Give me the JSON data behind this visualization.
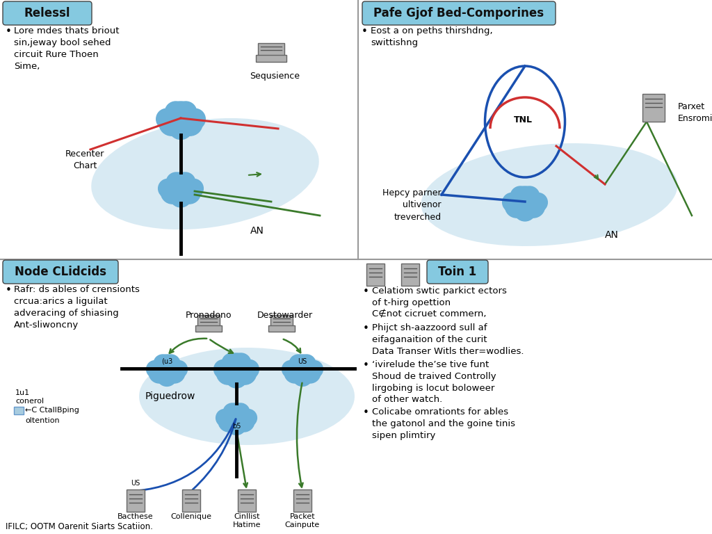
{
  "background_color": "#ffffff",
  "panel_tl": {
    "title": "Relessl",
    "title_bg": "#85c9e0",
    "bullet1": "Lore mdes thats briout\nsin,jeway bool sehed\ncircuit Rure Thoen\nSime,",
    "label_recenter": "Recenter\nChart",
    "label_seq": "Sequsience",
    "label_an": "AN",
    "ellipse_color": "#cce4f0",
    "line_red": "#d03030",
    "line_green": "#3a7a2a",
    "cloud_color": "#6ab0d8"
  },
  "panel_tr": {
    "title": "Pafe Gjof Bed-Comporines",
    "title_bg": "#85c9e0",
    "bullet1": "Eost a on peths thirshdng,\nswittishng",
    "label_tnl": "TNL",
    "label_parket": "Parxet\nEnsroming",
    "label_hepcy": "Hepcy parner\nultivenor\ntreverched",
    "label_an": "AN",
    "ellipse_color": "#cce4f0",
    "line_red": "#d03030",
    "line_blue": "#1a50b0",
    "line_green": "#3a7a2a",
    "cloud_color": "#6ab0d8"
  },
  "panel_bl": {
    "title": "Node CLidcids",
    "title_bg": "#85c9e0",
    "bullet1": "Rafr: ds ables of crensionts\ncrcua:arics a liguilat\nadveracing of shiasing\nAnt-sliwoncny",
    "label_legend_line1": "1u1",
    "label_legend_line2": "conerol",
    "label_legend_line3": "←C CtallBping",
    "label_legend_line4": "oltention",
    "label_pigu": "Piguedrow",
    "label_pronadono": "Pronadono",
    "label_destowarder": "Destowarder",
    "label_us_top": "US",
    "label_u3": "(u3",
    "label_us2": "US",
    "label_b5": "b5",
    "labels_bottom": [
      "Bacthese",
      "Collenique",
      "Cinllist\nHatime",
      "Packet\nCainpute"
    ],
    "ellipse_color": "#cce4f0",
    "line_blue": "#1a50b0",
    "line_green": "#3a7a2a",
    "cloud_color": "#6ab0d8"
  },
  "panel_br": {
    "title": "Toin 1",
    "title_bg": "#85c9e0",
    "bullets": [
      "Celatiom swtic parkict ectors\nof t-hirg opettion\nC∉not cicruet commern,",
      "Phijct sh-aazzoord sull af\neifaganaition of the curit\nData Transer Witls ther=wodlies.",
      "‘ivirelude the’se tive funt\nShoud de traived Controlly\nlirgobing is locut boloweer\nof other watch.",
      "Colicabe omrationts for ables\nthe gatonol and the goine tinis\nsipen plimtiry"
    ]
  },
  "footer": "IFILC; OOTM Oarenit Siarts Scatiion."
}
